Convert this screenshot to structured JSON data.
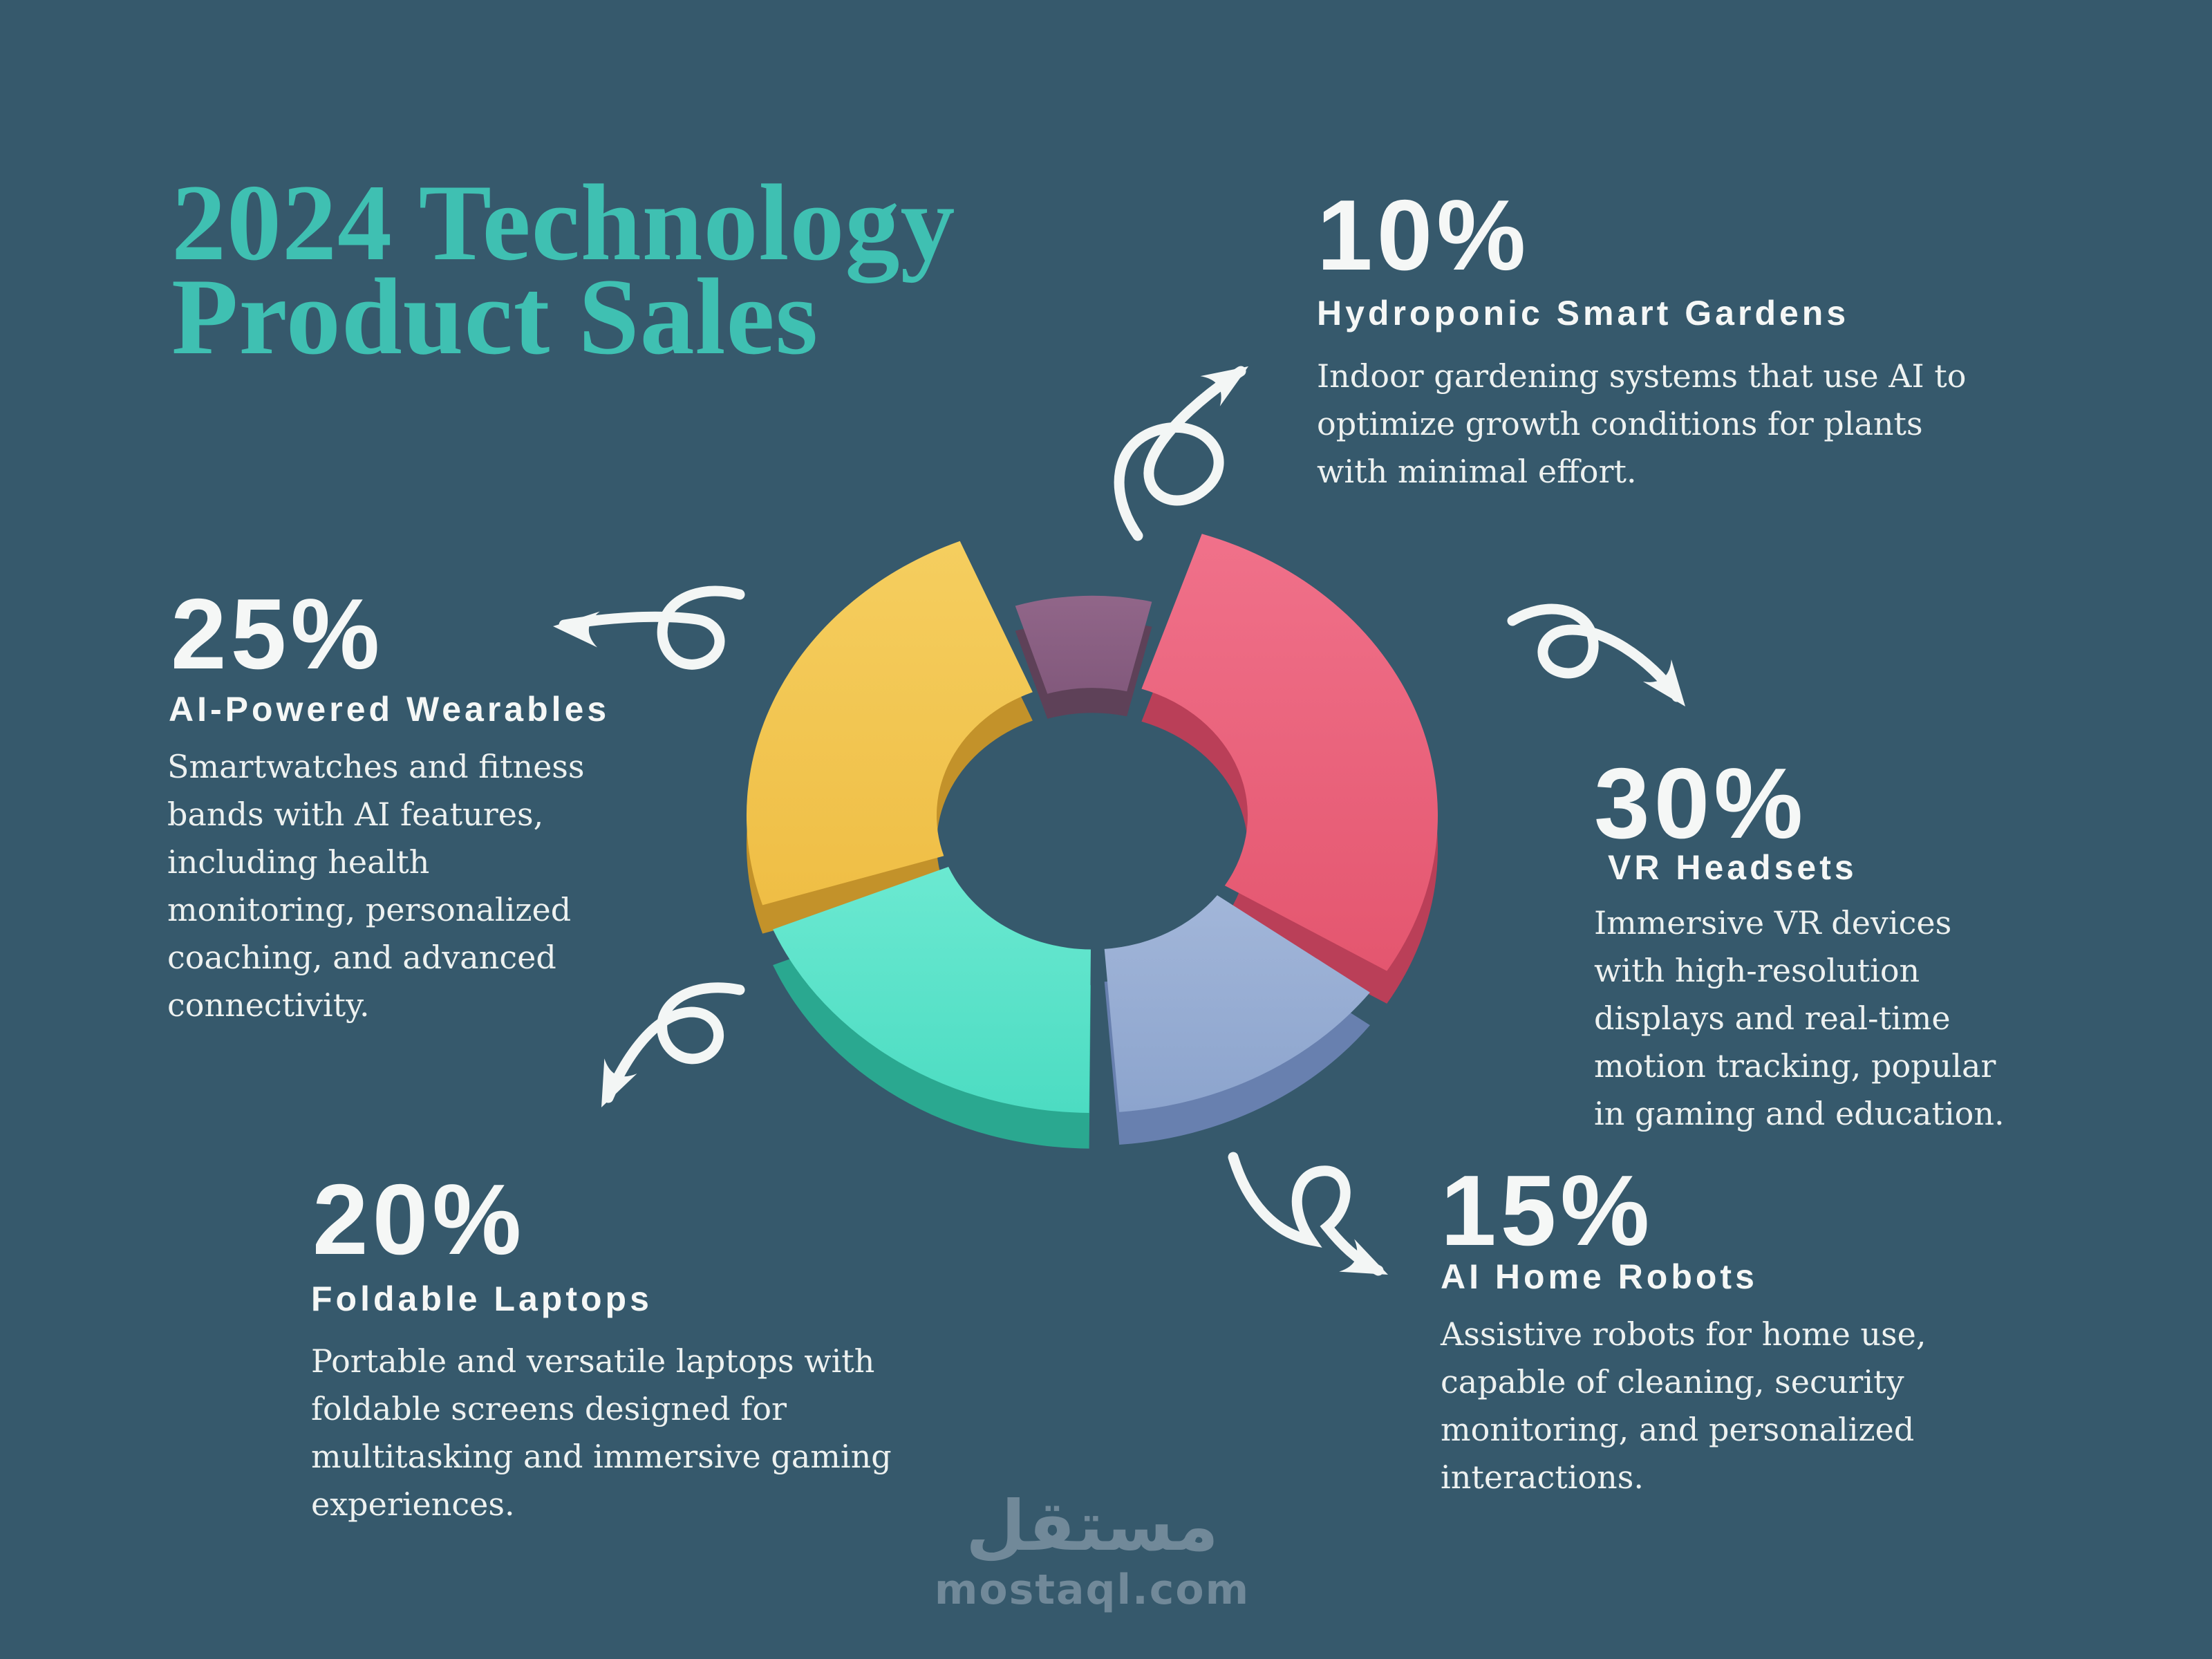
{
  "page": {
    "background": "#36596C",
    "title_line1": "2024 Technology",
    "title_line2": "Product Sales",
    "title_color": "#3FC0B2",
    "text_color": "#F5F7F6",
    "arrow_color": "#F3F6F5"
  },
  "sections": {
    "hydroponic": {
      "pct": "10%",
      "heading": "Hydroponic Smart Gardens",
      "body": "Indoor gardening systems that use AI to\noptimize growth conditions for plants\nwith minimal effort."
    },
    "wearables": {
      "pct": "25%",
      "heading": "AI-Powered Wearables",
      "body": "Smartwatches and fitness\nbands with AI features,\nincluding health\nmonitoring, personalized\ncoaching, and advanced\nconnectivity."
    },
    "vr": {
      "pct": "30%",
      "heading": "VR Headsets",
      "body": "Immersive VR devices\nwith high-resolution\ndisplays and real-time\nmotion tracking, popular\nin gaming and education."
    },
    "laptops": {
      "pct": "20%",
      "heading": "Foldable Laptops",
      "body": "Portable and versatile laptops with\nfoldable screens designed for\nmultitasking and immersive gaming\nexperiences."
    },
    "robots": {
      "pct": "15%",
      "heading": "AI Home Robots",
      "body": "Assistive robots for home use,\ncapable of cleaning, security\nmonitoring, and personalized\ninteractions."
    }
  },
  "watermark": {
    "arabic": "مستقل",
    "domain": "mostaql.com"
  },
  "chart_data": {
    "type": "pie",
    "title": "2024 Technology Product Sales",
    "categories": [
      "Hydroponic Smart Gardens",
      "VR Headsets",
      "AI Home Robots",
      "Foldable Laptops",
      "AI-Powered Wearables"
    ],
    "values": [
      10,
      30,
      15,
      20,
      25
    ],
    "unit": "%",
    "legend": "none",
    "style": "3d-donut",
    "start_angle_deg": -20,
    "hole_ratio": 0.45,
    "slices": [
      {
        "label": "Hydroponic Smart Gardens",
        "value": 10,
        "color": "#82597C",
        "color_light": "#916689",
        "color_dark": "#5E4158",
        "outer_scale": 0.74,
        "inner_r": 215,
        "depth": 42,
        "z": 0
      },
      {
        "label": "VR Headsets",
        "value": 30,
        "color": "#E4566F",
        "color_light": "#F0718A",
        "color_dark": "#BA3F58",
        "outer_scale": 1.0,
        "inner_r": 225,
        "depth": 55,
        "z": 2
      },
      {
        "label": "AI Home Robots",
        "value": 15,
        "color": "#8CA4CD",
        "color_light": "#A2B6D9",
        "color_dark": "#6880AF",
        "outer_scale": 1.0,
        "inner_r": 225,
        "depth": 55,
        "z": 3
      },
      {
        "label": "Foldable Laptops",
        "value": 20,
        "color": "#4CDCC2",
        "color_light": "#6BE9D1",
        "color_dark": "#2AA890",
        "outer_scale": 1.0,
        "inner_r": 225,
        "depth": 60,
        "z": 4
      },
      {
        "label": "AI-Powered Wearables",
        "value": 25,
        "color": "#EFBE45",
        "color_light": "#F5CE5F",
        "color_dark": "#C3922A",
        "outer_scale": 1.0,
        "inner_r": 225,
        "depth": 48,
        "z": 1
      }
    ]
  }
}
